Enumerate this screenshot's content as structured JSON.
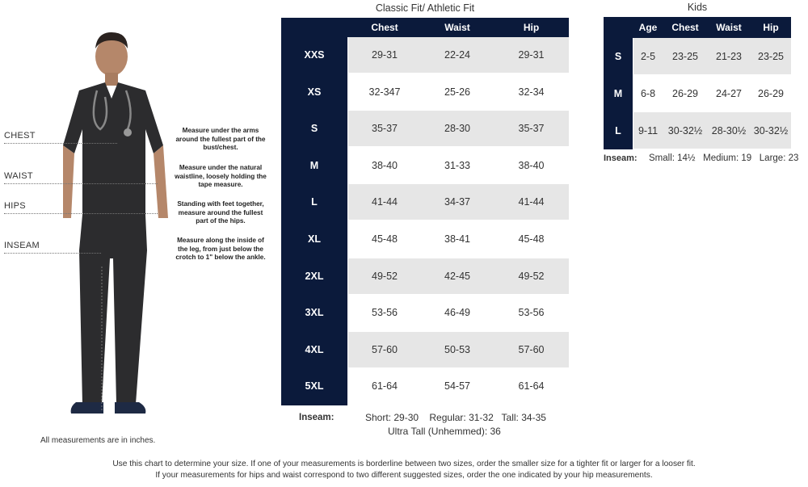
{
  "figure": {
    "labels": {
      "chest": "CHEST",
      "waist": "WAIST",
      "hips": "HIPS",
      "inseam": "INSEAM"
    },
    "descriptions": {
      "chest": "Measure under the arms around the fullest part of the bust/chest.",
      "waist": "Measure under the natural waistline, loosely holding the tape measure.",
      "hips": "Standing with feet together, measure around the fullest part of the hips.",
      "inseam": "Measure along the inside of the leg, from just below the crotch to 1\" below the ankle."
    },
    "note": "All measurements are in inches."
  },
  "adult": {
    "title": "Classic Fit/ Athletic Fit",
    "headers": [
      "Chest",
      "Waist",
      "Hip"
    ],
    "rows": [
      {
        "size": "XXS",
        "chest": "29-31",
        "waist": "22-24",
        "hip": "29-31"
      },
      {
        "size": "XS",
        "chest": "32-347",
        "waist": "25-26",
        "hip": "32-34"
      },
      {
        "size": "S",
        "chest": "35-37",
        "waist": "28-30",
        "hip": "35-37"
      },
      {
        "size": "M",
        "chest": "38-40",
        "waist": "31-33",
        "hip": "38-40"
      },
      {
        "size": "L",
        "chest": "41-44",
        "waist": "34-37",
        "hip": "41-44"
      },
      {
        "size": "XL",
        "chest": "45-48",
        "waist": "38-41",
        "hip": "45-48"
      },
      {
        "size": "2XL",
        "chest": "49-52",
        "waist": "42-45",
        "hip": "49-52"
      },
      {
        "size": "3XL",
        "chest": "53-56",
        "waist": "46-49",
        "hip": "53-56"
      },
      {
        "size": "4XL",
        "chest": "57-60",
        "waist": "50-53",
        "hip": "57-60"
      },
      {
        "size": "5XL",
        "chest": "61-64",
        "waist": "54-57",
        "hip": "61-64"
      }
    ],
    "inseam_label": "Inseam:",
    "inseam_line1": "Short: 29-30    Regular: 31-32   Tall: 34-35",
    "inseam_line2": "Ultra Tall (Unhemmed): 36"
  },
  "kids": {
    "title": "Kids",
    "headers": [
      "Age",
      "Chest",
      "Waist",
      "Hip"
    ],
    "rows": [
      {
        "size": "S",
        "age": "2-5",
        "chest": "23-25",
        "waist": "21-23",
        "hip": "23-25"
      },
      {
        "size": "M",
        "age": "6-8",
        "chest": "26-29",
        "waist": "24-27",
        "hip": "26-29"
      },
      {
        "size": "L",
        "age": "9-11",
        "chest": "30-32½",
        "waist": "28-30½",
        "hip": "30-32½"
      }
    ],
    "inseam_label": "Inseam:",
    "inseam_text": "Small: 14½   Medium: 19   Large: 23"
  },
  "footer": {
    "line1": "Use this chart to determine your size. If one of your measurements is borderline between two sizes, order the smaller size for a tighter fit or larger for a looser fit.",
    "line2": "If your measurements for hips and waist correspond to two different suggested sizes, order the one indicated by your hip measurements."
  },
  "colors": {
    "header_navy": "#0b1a3b",
    "row_shade": "#e6e6e6",
    "scrub_dark": "#2c2c2e"
  }
}
